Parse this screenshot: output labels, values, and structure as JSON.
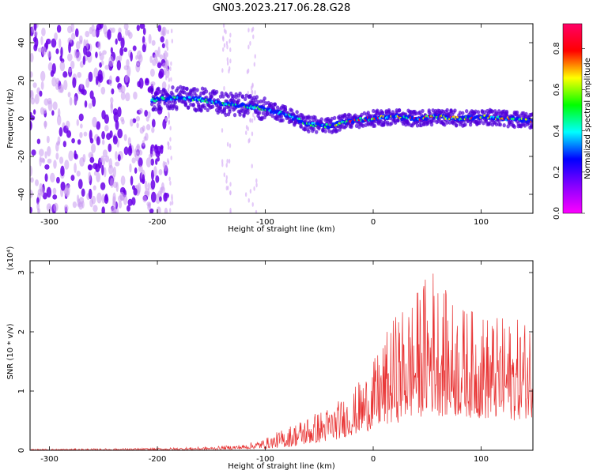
{
  "title": "GN03.2023.217.06.28.G28",
  "chart_data": [
    {
      "type": "heatmap",
      "title": "GN03.2023.217.06.28.G28",
      "xlabel": "Height of straight line (km)",
      "ylabel": "Frequency (Hz)",
      "xlim": [
        -318,
        148
      ],
      "ylim": [
        -50,
        50
      ],
      "xticks": [
        -300,
        -200,
        -100,
        0,
        100
      ],
      "yticks": [
        -40,
        -20,
        0,
        20,
        40
      ],
      "colorbar": {
        "label": "Normalized spectral amplitude",
        "range": [
          0.0,
          0.92
        ],
        "ticks": [
          0.0,
          0.2,
          0.4,
          0.6,
          0.8
        ],
        "colors": [
          "#ff00ff",
          "#8800ff",
          "#0000ff",
          "#00ffff",
          "#00ff00",
          "#ffff00",
          "#ff0000",
          "#ff0066"
        ]
      },
      "doppler_trace": {
        "x": [
          -200,
          -180,
          -160,
          -140,
          -120,
          -100,
          -80,
          -60,
          -40,
          -20,
          0,
          20,
          40,
          60,
          80,
          100,
          120,
          145
        ],
        "y": [
          10,
          11,
          10,
          8,
          7,
          5,
          2,
          -3,
          -4,
          -1,
          0,
          1,
          0,
          1,
          0,
          1,
          0,
          -1
        ]
      },
      "noise_region_x": [
        -318,
        -200
      ]
    },
    {
      "type": "line",
      "xlabel": "Height of straight line (km)",
      "ylabel": "SNR (10 * v/v)",
      "scale_label": "(x10⁴)",
      "xlim": [
        -318,
        148
      ],
      "ylim": [
        0,
        3.2
      ],
      "xticks": [
        -300,
        -200,
        -100,
        0,
        100
      ],
      "yticks": [
        0,
        1,
        2,
        3
      ],
      "color": "#e83232",
      "envelope": {
        "x": [
          -318,
          -250,
          -200,
          -150,
          -120,
          -100,
          -80,
          -60,
          -40,
          -20,
          0,
          20,
          40,
          55,
          70,
          90,
          110,
          130,
          148
        ],
        "upper": [
          0.02,
          0.03,
          0.04,
          0.06,
          0.1,
          0.2,
          0.4,
          0.6,
          0.75,
          1.0,
          1.5,
          2.3,
          2.7,
          3.2,
          2.6,
          2.4,
          2.3,
          2.2,
          2.3
        ],
        "lower": [
          0.0,
          0.0,
          0.0,
          0.01,
          0.02,
          0.03,
          0.05,
          0.1,
          0.15,
          0.25,
          0.35,
          0.45,
          0.55,
          0.6,
          0.55,
          0.55,
          0.5,
          0.5,
          0.55
        ]
      }
    }
  ]
}
